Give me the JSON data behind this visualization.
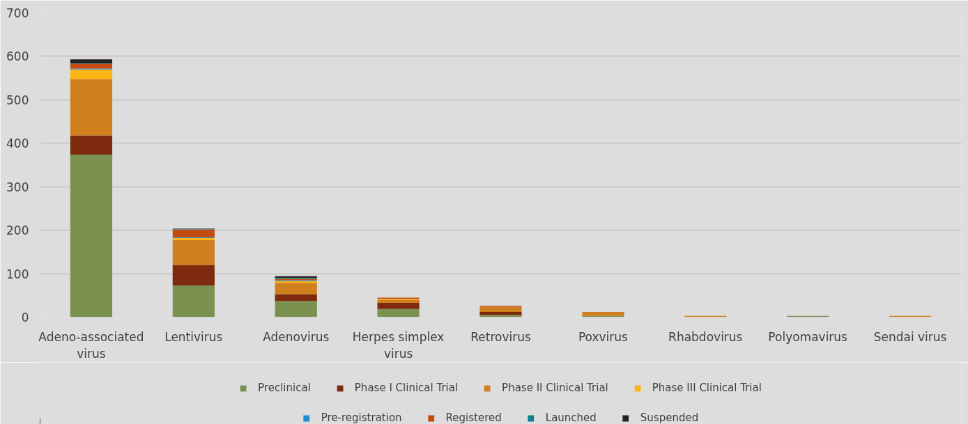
{
  "chart_data": {
    "type": "bar",
    "stacked": true,
    "categories": [
      "Adeno-associated virus",
      "Lentivirus",
      "Adenovirus",
      "Herpes simplex virus",
      "Retrovirus",
      "Poxvirus",
      "Rhabdovirus",
      "Polyomavirus",
      "Sendai virus"
    ],
    "series": [
      {
        "name": "Preclinical",
        "color": "#7a9150",
        "values": [
          374,
          73,
          37,
          19,
          5,
          3,
          0,
          3,
          0
        ]
      },
      {
        "name": "Phase I Clinical Trial",
        "color": "#7e2a0e",
        "values": [
          44,
          47,
          16,
          14,
          7,
          0,
          0,
          0,
          0
        ]
      },
      {
        "name": "Phase II Clinical Trial",
        "color": "#d07f1f",
        "values": [
          130,
          57,
          26,
          7,
          12,
          9,
          3,
          0,
          3
        ]
      },
      {
        "name": "Phase III Clinical Trial",
        "color": "#fdb515",
        "values": [
          22,
          5,
          4,
          2,
          0,
          0,
          0,
          0,
          0
        ]
      },
      {
        "name": "Pre-registration",
        "color": "#1f8fd0",
        "values": [
          2,
          2,
          2,
          0,
          0,
          0,
          0,
          0,
          0
        ]
      },
      {
        "name": "Registered",
        "color": "#c54a0f",
        "values": [
          11,
          18,
          3,
          3,
          2,
          0,
          0,
          0,
          0
        ]
      },
      {
        "name": "Launched",
        "color": "#0f7f8a",
        "values": [
          1,
          1,
          2,
          0,
          0,
          0,
          0,
          0,
          0
        ]
      },
      {
        "name": "Suspended",
        "color": "#222222",
        "values": [
          9,
          1,
          4,
          0,
          0,
          0,
          0,
          0,
          0
        ]
      }
    ],
    "ylim": [
      0,
      700
    ],
    "yticks": [
      0,
      100,
      200,
      300,
      400,
      500,
      600,
      700
    ],
    "grid": "y",
    "legend": "bottom"
  }
}
